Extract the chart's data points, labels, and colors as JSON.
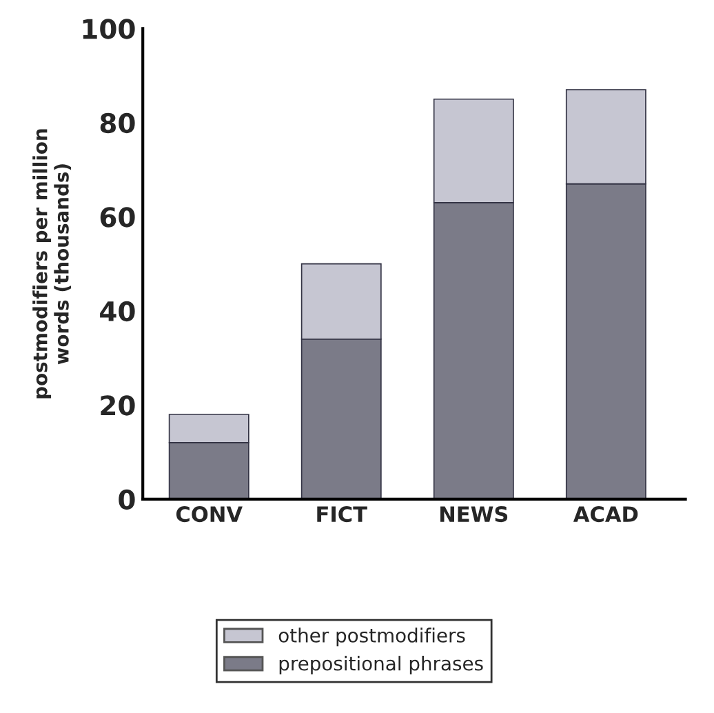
{
  "chart_data": {
    "type": "bar",
    "stacked": true,
    "ylabel": "postmodifiers per million\nwords (thousands)",
    "categories": [
      "CONV",
      "FICT",
      "NEWS",
      "ACAD"
    ],
    "series": [
      {
        "name": "prepositional phrases",
        "color": "#7b7b88",
        "values": [
          12,
          34,
          63,
          67
        ]
      },
      {
        "name": "other postmodifiers",
        "color": "#c6c6d2",
        "values": [
          6,
          16,
          22,
          20
        ]
      }
    ],
    "ylim": [
      0,
      100
    ],
    "yticks": [
      0,
      20,
      40,
      60,
      80,
      100
    ],
    "grid": false,
    "legend": "bottom"
  }
}
